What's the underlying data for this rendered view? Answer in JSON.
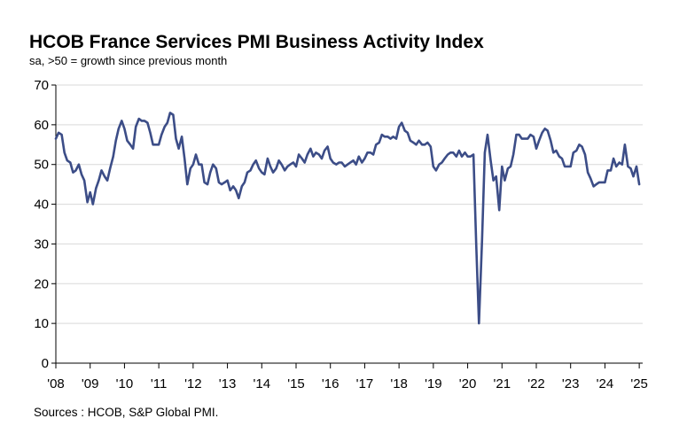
{
  "chart_data": {
    "type": "line",
    "title": "HCOB France Services PMI Business Activity Index",
    "subtitle": "sa, >50 = growth since previous month",
    "source": "Sources : HCOB, S&P Global PMI.",
    "ylim": [
      0,
      70
    ],
    "yticks": [
      0,
      10,
      20,
      30,
      40,
      50,
      60,
      70
    ],
    "xlim": [
      2008.0,
      2025.1
    ],
    "xtick_labels": [
      "'08",
      "'09",
      "'10",
      "'11",
      "'12",
      "'13",
      "'14",
      "'15",
      "'16",
      "'17",
      "'18",
      "'19",
      "'20",
      "'21",
      "'22",
      "'23",
      "'24",
      "'25"
    ],
    "xtick_values": [
      2008,
      2009,
      2010,
      2011,
      2012,
      2013,
      2014,
      2015,
      2016,
      2017,
      2018,
      2019,
      2020,
      2021,
      2022,
      2023,
      2024,
      2025
    ],
    "grid": true,
    "line_color": "#3c4d87",
    "series": [
      {
        "x": [
          2008.0,
          2008.08,
          2008.17,
          2008.25,
          2008.33,
          2008.42,
          2008.5,
          2008.58,
          2008.67,
          2008.75,
          2008.83,
          2008.92,
          2009.0,
          2009.08,
          2009.17,
          2009.25,
          2009.33,
          2009.42,
          2009.5,
          2009.58,
          2009.67,
          2009.75,
          2009.83,
          2009.92,
          2010.0,
          2010.08,
          2010.17,
          2010.25,
          2010.33,
          2010.42,
          2010.5,
          2010.58,
          2010.67,
          2010.75,
          2010.83,
          2010.92,
          2011.0,
          2011.08,
          2011.17,
          2011.25,
          2011.33,
          2011.42,
          2011.5,
          2011.58,
          2011.67,
          2011.75,
          2011.83,
          2011.92,
          2012.0,
          2012.08,
          2012.17,
          2012.25,
          2012.33,
          2012.42,
          2012.5,
          2012.58,
          2012.67,
          2012.75,
          2012.83,
          2012.92,
          2013.0,
          2013.08,
          2013.17,
          2013.25,
          2013.33,
          2013.42,
          2013.5,
          2013.58,
          2013.67,
          2013.75,
          2013.83,
          2013.92,
          2014.0,
          2014.08,
          2014.17,
          2014.25,
          2014.33,
          2014.42,
          2014.5,
          2014.58,
          2014.67,
          2014.75,
          2014.83,
          2014.92,
          2015.0,
          2015.08,
          2015.17,
          2015.25,
          2015.33,
          2015.42,
          2015.5,
          2015.58,
          2015.67,
          2015.75,
          2015.83,
          2015.92,
          2016.0,
          2016.08,
          2016.17,
          2016.25,
          2016.33,
          2016.42,
          2016.5,
          2016.58,
          2016.67,
          2016.75,
          2016.83,
          2016.92,
          2017.0,
          2017.08,
          2017.17,
          2017.25,
          2017.33,
          2017.42,
          2017.5,
          2017.58,
          2017.67,
          2017.75,
          2017.83,
          2017.92,
          2018.0,
          2018.08,
          2018.17,
          2018.25,
          2018.33,
          2018.42,
          2018.5,
          2018.58,
          2018.67,
          2018.75,
          2018.83,
          2018.92,
          2019.0,
          2019.08,
          2019.17,
          2019.25,
          2019.33,
          2019.42,
          2019.5,
          2019.58,
          2019.67,
          2019.75,
          2019.83,
          2019.92,
          2020.0,
          2020.08,
          2020.17,
          2020.25,
          2020.33,
          2020.42,
          2020.5,
          2020.58,
          2020.67,
          2020.75,
          2020.83,
          2020.92,
          2021.0,
          2021.08,
          2021.17,
          2021.25,
          2021.33,
          2021.42,
          2021.5,
          2021.58,
          2021.67,
          2021.75,
          2021.83,
          2021.92,
          2022.0,
          2022.08,
          2022.17,
          2022.25,
          2022.33,
          2022.42,
          2022.5,
          2022.58,
          2022.67,
          2022.75,
          2022.83,
          2022.92,
          2023.0,
          2023.08,
          2023.17,
          2023.25,
          2023.33,
          2023.42,
          2023.5,
          2023.58,
          2023.67,
          2023.75,
          2023.83,
          2023.92,
          2024.0,
          2024.08,
          2024.17,
          2024.25,
          2024.33,
          2024.42,
          2024.5,
          2024.58,
          2024.67,
          2024.75,
          2024.83,
          2024.92,
          2025.0
        ],
        "values": [
          56.5,
          58.0,
          57.5,
          53.0,
          51.0,
          50.5,
          48.0,
          48.5,
          50.0,
          47.5,
          46.0,
          40.5,
          43.0,
          40.0,
          44.0,
          46.0,
          48.5,
          47.0,
          46.0,
          49.0,
          52.0,
          56.0,
          59.0,
          61.0,
          59.0,
          56.0,
          55.0,
          54.0,
          59.5,
          61.5,
          61.0,
          61.0,
          60.5,
          58.0,
          55.0,
          55.0,
          55.0,
          57.5,
          59.5,
          60.5,
          63.0,
          62.5,
          56.5,
          54.0,
          57.0,
          51.5,
          45.0,
          49.0,
          50.0,
          52.5,
          50.0,
          50.0,
          45.5,
          45.0,
          48.0,
          50.0,
          49.0,
          45.5,
          45.0,
          45.5,
          46.0,
          43.5,
          44.5,
          43.5,
          41.5,
          44.5,
          45.5,
          48.0,
          48.5,
          50.0,
          51.0,
          49.0,
          48.0,
          47.5,
          51.5,
          49.5,
          48.0,
          49.0,
          51.0,
          50.0,
          48.5,
          49.5,
          50.0,
          50.5,
          49.5,
          52.5,
          51.5,
          50.5,
          52.5,
          54.0,
          52.0,
          53.0,
          52.5,
          51.5,
          53.5,
          54.5,
          51.5,
          50.5,
          50.0,
          50.5,
          50.5,
          49.5,
          50.0,
          50.5,
          51.0,
          50.0,
          52.0,
          50.5,
          51.5,
          53.0,
          53.0,
          52.5,
          55.0,
          55.5,
          57.5,
          57.0,
          57.0,
          56.5,
          57.0,
          56.5,
          59.5,
          60.5,
          58.5,
          58.0,
          56.0,
          55.5,
          55.0,
          56.0,
          55.0,
          55.0,
          55.5,
          54.5,
          49.5,
          48.5,
          50.0,
          50.5,
          51.5,
          52.5,
          53.0,
          53.0,
          52.0,
          53.5,
          52.0,
          53.0,
          52.0,
          52.0,
          52.5,
          30.0,
          10.0,
          31.0,
          53.0,
          57.5,
          51.0,
          46.0,
          47.0,
          38.5,
          49.5,
          46.0,
          49.0,
          49.5,
          52.5,
          57.5,
          57.5,
          56.5,
          56.5,
          56.5,
          57.5,
          57.0,
          54.0,
          56.0,
          58.0,
          59.0,
          58.5,
          56.0,
          53.0,
          53.5,
          52.0,
          51.5,
          49.5,
          49.5,
          49.5,
          53.0,
          53.5,
          55.0,
          54.5,
          52.5,
          48.0,
          46.5,
          44.5,
          45.0,
          45.5,
          45.5,
          45.5,
          48.5,
          48.5,
          51.5,
          49.5,
          50.5,
          50.0,
          55.0,
          49.5,
          49.0,
          47.0,
          49.5,
          45.0
        ]
      }
    ]
  }
}
